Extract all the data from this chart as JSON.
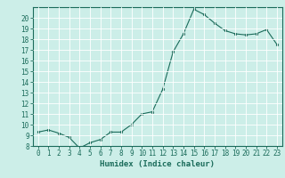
{
  "x": [
    0,
    1,
    2,
    3,
    4,
    5,
    6,
    7,
    8,
    9,
    10,
    11,
    12,
    13,
    14,
    15,
    16,
    17,
    18,
    19,
    20,
    21,
    22,
    23
  ],
  "y": [
    9.3,
    9.5,
    9.2,
    8.8,
    7.8,
    8.3,
    8.6,
    9.3,
    9.3,
    10.0,
    11.0,
    11.2,
    13.3,
    16.8,
    18.5,
    20.8,
    20.3,
    19.5,
    18.8,
    18.5,
    18.4,
    18.5,
    18.9,
    17.5
  ],
  "xlabel": "Humidex (Indice chaleur)",
  "ylim": [
    8,
    21
  ],
  "xlim": [
    -0.5,
    23.5
  ],
  "yticks": [
    8,
    9,
    10,
    11,
    12,
    13,
    14,
    15,
    16,
    17,
    18,
    19,
    20
  ],
  "xticks": [
    0,
    1,
    2,
    3,
    4,
    5,
    6,
    7,
    8,
    9,
    10,
    11,
    12,
    13,
    14,
    15,
    16,
    17,
    18,
    19,
    20,
    21,
    22,
    23
  ],
  "line_color": "#1a6b5a",
  "bg_color": "#cceee8",
  "grid_color": "#ffffff",
  "xlabel_fontsize": 6.5,
  "tick_fontsize": 5.5,
  "figsize": [
    3.2,
    2.0
  ],
  "dpi": 100
}
